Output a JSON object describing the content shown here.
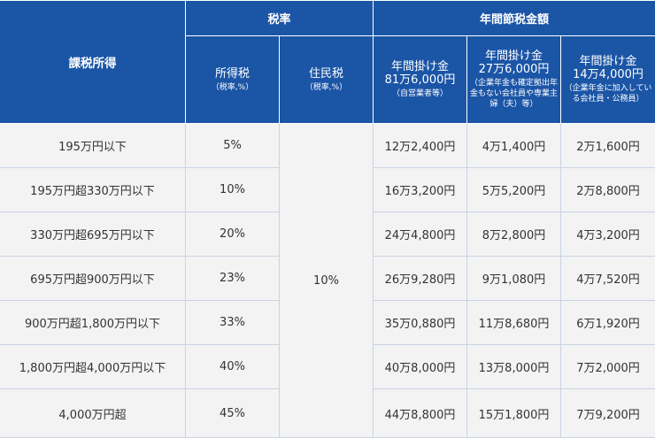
{
  "header": {
    "taxable_income": "課税所得",
    "tax_rate": "税率",
    "annual_savings": "年間節税金額",
    "income_tax": "所得税",
    "income_tax_note": "（税率,%）",
    "resident_tax": "住民税",
    "resident_tax_note": "（税率,%）",
    "col_self_employed": {
      "line1": "年間掛け金",
      "line2": "81万6,000円",
      "note": "（自営業者等）"
    },
    "col_no_pension": {
      "line1": "年間掛け金",
      "line2": "27万6,000円",
      "note": "（企業年金も確定拠出年金もない会社員や専業主婦（夫）等）"
    },
    "col_with_pension": {
      "line1": "年間掛け金",
      "line2": "14万4,000円",
      "note": "（企業年金に加入している会社員・公務員）"
    }
  },
  "resident_tax_rate": "10%",
  "rows": [
    {
      "income": "195万円以下",
      "income_tax": "5%",
      "a": "12万2,400円",
      "b": "4万1,400円",
      "c": "2万1,600円"
    },
    {
      "income": "195万円超330万円以下",
      "income_tax": "10%",
      "a": "16万3,200円",
      "b": "5万5,200円",
      "c": "2万8,800円"
    },
    {
      "income": "330万円超695万円以下",
      "income_tax": "20%",
      "a": "24万4,800円",
      "b": "8万2,800円",
      "c": "4万3,200円"
    },
    {
      "income": "695万円超900万円以下",
      "income_tax": "23%",
      "a": "26万9,280円",
      "b": "9万1,080円",
      "c": "4万7,520円"
    },
    {
      "income": "900万円超1,800万円以下",
      "income_tax": "33%",
      "a": "35万0,880円",
      "b": "11万8,680円",
      "c": "6万1,920円"
    },
    {
      "income": "1,800万円超4,000万円以下",
      "income_tax": "40%",
      "a": "40万8,000円",
      "b": "13万8,000円",
      "c": "7万2,000円"
    },
    {
      "income": "4,000万円超",
      "income_tax": "45%",
      "a": "44万8,800円",
      "b": "15万1,800円",
      "c": "7万9,200円"
    }
  ]
}
